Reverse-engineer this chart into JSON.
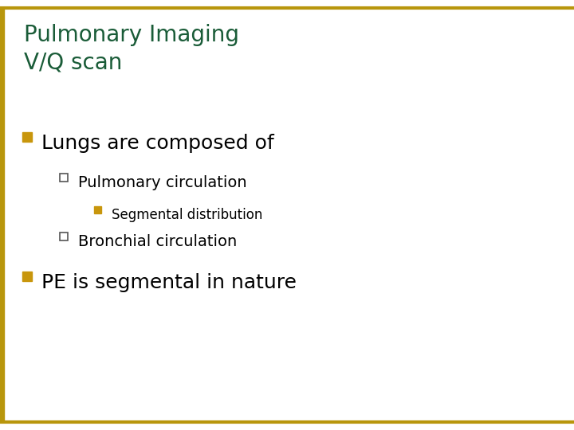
{
  "background_color": "#ffffff",
  "title_line1": "Pulmonary Imaging",
  "title_line2": "V/Q scan",
  "title_color": "#1a5c38",
  "title_fontsize": 20,
  "border_color": "#b8960c",
  "left_bar_color": "#b8960c",
  "bullet1_text": "Lungs are composed of",
  "bullet1_fontsize": 18,
  "bullet1_marker_color": "#c8960c",
  "sub_bullet1_text": "Pulmonary circulation",
  "sub_bullet1_fontsize": 14,
  "sub_sub_bullet1_text": "Segmental distribution",
  "sub_sub_bullet1_fontsize": 12,
  "sub_sub_bullet1_marker_color": "#c8960c",
  "sub_bullet2_text": "Bronchial circulation",
  "sub_bullet2_fontsize": 14,
  "bullet2_text": "PE is segmental in nature",
  "bullet2_fontsize": 18
}
